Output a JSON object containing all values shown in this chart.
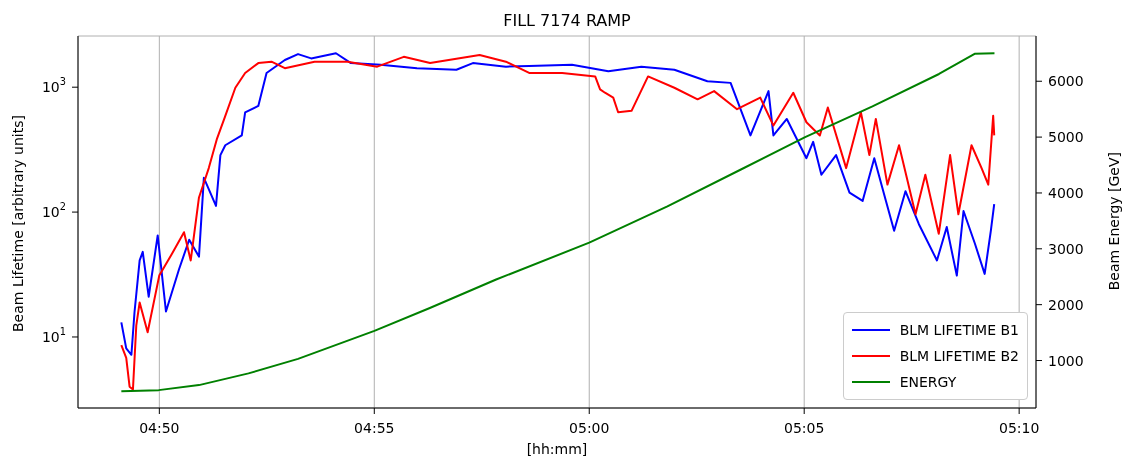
{
  "chart_data": {
    "type": "line",
    "title": "FILL 7174 RAMP",
    "xlabel": "[hh:mm]",
    "ylabel": "Beam Lifetime [arbitrary units]",
    "y2label": "Beam Energy [GeV]",
    "xlim": [
      4.8018,
      5.1732
    ],
    "xticks": [
      {
        "value": 4.833333,
        "label": "04:50"
      },
      {
        "value": 4.916667,
        "label": "04:55"
      },
      {
        "value": 5,
        "label": "05:00"
      },
      {
        "value": 5.083333,
        "label": "05:05"
      },
      {
        "value": 5.166667,
        "label": "05:10"
      }
    ],
    "ylim": [
      2.7,
      2570
    ],
    "yticks": [
      {
        "value": 10,
        "label": "10$^{1}$"
      },
      {
        "value": 100,
        "label": "10$^{2}$"
      },
      {
        "value": 1000,
        "label": "10$^{3}$"
      }
    ],
    "log": "y",
    "y2lim": [
      150,
      6810
    ],
    "y2ticks": [
      1000,
      2000,
      3000,
      4000,
      5000,
      6000
    ],
    "grid": true,
    "legend": "bottom right",
    "series": [
      {
        "name": "BLM LIFETIME B1",
        "color": "#0000ff",
        "x": [
          4.8186,
          4.8205,
          4.8225,
          4.8237,
          4.8257,
          4.8269,
          4.8292,
          4.8327,
          4.8359,
          4.841,
          4.8449,
          4.8487,
          4.8506,
          4.8553,
          4.857,
          4.8589,
          4.8653,
          4.8666,
          4.8717,
          4.8749,
          4.882,
          4.8871,
          4.8922,
          4.9018,
          4.9076,
          4.9191,
          4.9332,
          4.9485,
          4.9549,
          4.9677,
          4.9767,
          4.9933,
          5.0074,
          5.0202,
          5.033,
          5.0458,
          5.0548,
          5.0625,
          5.0695,
          5.0714,
          5.0766,
          5.0842,
          5.0868,
          5.09,
          5.0957,
          5.1009,
          5.106,
          5.1105,
          5.115,
          5.1182,
          5.1226,
          5.1278,
          5.1348,
          5.1386,
          5.1425,
          5.1451,
          5.1495,
          5.1533,
          5.1557,
          5.157
        ],
        "values": [
          13.1,
          8.1,
          7.2,
          15.7,
          41,
          48,
          21,
          65,
          16,
          35,
          60,
          44,
          188,
          112,
          286,
          343,
          411,
          628,
          708,
          1300,
          1650,
          1840,
          1700,
          1870,
          1560,
          1510,
          1420,
          1380,
          1560,
          1460,
          1480,
          1510,
          1340,
          1460,
          1380,
          1115,
          1083,
          411,
          930,
          411,
          557,
          270,
          365,
          199,
          286,
          143,
          123,
          270,
          123,
          71,
          147,
          80,
          41,
          76,
          31,
          102,
          56,
          32,
          71,
          116
        ]
      },
      {
        "name": "BLM LIFETIME B2",
        "color": "#ff0000",
        "x": [
          4.8186,
          4.8205,
          4.8218,
          4.8231,
          4.8244,
          4.8257,
          4.8288,
          4.8333,
          4.8384,
          4.8429,
          4.8455,
          4.8487,
          4.8525,
          4.8557,
          4.8587,
          4.8628,
          4.8666,
          4.8717,
          4.8768,
          4.882,
          4.8935,
          4.9063,
          4.9178,
          4.9281,
          4.9383,
          4.9575,
          4.9677,
          4.9767,
          4.9895,
          5.0023,
          5.0042,
          5.0061,
          5.0093,
          5.0112,
          5.0164,
          5.0228,
          5.033,
          5.042,
          5.0484,
          5.0573,
          5.0663,
          5.0714,
          5.0791,
          5.0842,
          5.0894,
          5.0925,
          5.0996,
          5.1053,
          5.1086,
          5.1111,
          5.1156,
          5.1201,
          5.1265,
          5.1303,
          5.1355,
          5.1399,
          5.1431,
          5.1482,
          5.1521,
          5.1547,
          5.1566,
          5.157
        ],
        "values": [
          8.6,
          6.8,
          4.0,
          3.8,
          12.4,
          18.9,
          10.9,
          31,
          47,
          69,
          41,
          131,
          225,
          388,
          574,
          990,
          1300,
          1560,
          1600,
          1420,
          1600,
          1600,
          1460,
          1750,
          1560,
          1810,
          1600,
          1300,
          1300,
          1220,
          960,
          903,
          825,
          630,
          647,
          1220,
          990,
          800,
          930,
          667,
          825,
          493,
          903,
          524,
          411,
          688,
          225,
          630,
          286,
          557,
          166,
          343,
          96,
          199,
          67,
          286,
          96,
          343,
          225,
          166,
          591,
          411
        ]
      },
      {
        "name": "ENERGY",
        "color": "#008000",
        "axis": "y2",
        "x": [
          4.8186,
          4.8331,
          4.8487,
          4.8679,
          4.8871,
          4.9167,
          4.9382,
          4.9639,
          5.0,
          5.0303,
          5.0588,
          5.0837,
          5.1098,
          5.1356,
          5.1494,
          5.1571
        ],
        "values": [
          450,
          470,
          560,
          770,
          1030,
          1530,
          1940,
          2450,
          3110,
          3760,
          4420,
          5000,
          5550,
          6130,
          6490,
          6500
        ]
      }
    ]
  }
}
